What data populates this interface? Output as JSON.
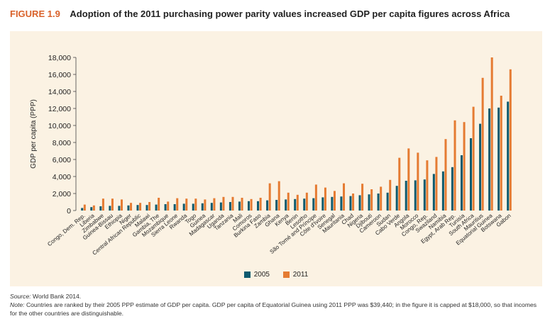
{
  "figure": {
    "label": "FIGURE 1.9",
    "title": "Adoption of the 2011 purchasing power parity values increased GDP per capita figures across Africa"
  },
  "colors": {
    "series_2005": "#0d5a6e",
    "series_2011": "#e57b32",
    "label_accent": "#d9622b",
    "panel_bg": "#fbf2e3"
  },
  "chart_data": {
    "type": "bar",
    "title": "Adoption of the 2011 purchasing power parity values increased GDP per capita figures across Africa",
    "xlabel": "",
    "ylabel": "GDP per capita (PPP)",
    "ylim": [
      0,
      18000
    ],
    "yticks": [
      "0",
      "2,000",
      "4,000",
      "6,000",
      "8,000",
      "10,000",
      "12,000",
      "14,000",
      "16,000",
      "18,000"
    ],
    "categories": [
      "Congo, Dem. Rep.",
      "Liberia",
      "Zimbabwe",
      "Guinea-Bissau",
      "Ethiopia",
      "Niger",
      "Central African Republic",
      "Malawi",
      "Gambia, The",
      "Mozambique",
      "Sierra Leone",
      "Rwanda",
      "Togo",
      "Guinea",
      "Madagascar",
      "Uganda",
      "Tanzania",
      "Mali",
      "Comoros",
      "Burkina Faso",
      "Zambia",
      "Ghana",
      "Kenya",
      "Benin",
      "Lesotho",
      "São Tomé and Príncipe",
      "Côte d'Ivoire",
      "Senegal",
      "Mauritania",
      "Chad",
      "Nigeria",
      "Djibouti",
      "Cameroon",
      "Sudan",
      "Cabo Verde",
      "Angola",
      "Morocco",
      "Congo, Rep.",
      "Swaziland",
      "Namibia",
      "Egypt, Arab Rep.",
      "Tunisia",
      "South Africa",
      "Mauritius",
      "Equatorial Guinea",
      "Botswana",
      "Gabon"
    ],
    "series": [
      {
        "name": "2005",
        "values": [
          300,
          400,
          500,
          550,
          550,
          600,
          650,
          650,
          700,
          750,
          750,
          800,
          800,
          850,
          900,
          950,
          1000,
          1050,
          1100,
          1100,
          1200,
          1250,
          1300,
          1350,
          1400,
          1450,
          1550,
          1600,
          1650,
          1700,
          1800,
          1900,
          2000,
          2100,
          2900,
          3500,
          3550,
          3650,
          4300,
          4600,
          5100,
          6500,
          8500,
          10200,
          12000,
          12100,
          12800
        ]
      },
      {
        "name": "2011",
        "values": [
          700,
          600,
          1400,
          1400,
          1300,
          900,
          900,
          1000,
          1500,
          1050,
          1450,
          1400,
          1400,
          1300,
          1450,
          1600,
          1600,
          1500,
          1350,
          1500,
          3200,
          3450,
          2100,
          1850,
          2100,
          3050,
          2700,
          2300,
          3200,
          2000,
          3150,
          2500,
          2800,
          3600,
          6200,
          7300,
          6800,
          5900,
          6300,
          8400,
          10600,
          10400,
          12200,
          15600,
          18000,
          13500,
          16600
        ]
      }
    ],
    "legend": [
      "2005",
      "2011"
    ],
    "legend_position": "bottom-center"
  },
  "footer": {
    "source_label": "Source:",
    "source_text": "World Bank 2014.",
    "note_label": "Note:",
    "note_text": "Countries are ranked by their 2005 PPP estimate of GDP per capita. GDP per capita of Equatorial Guinea using 2011 PPP was $39,440; in the figure it is capped at $18,000, so that incomes for the other countries are distinguishable."
  }
}
